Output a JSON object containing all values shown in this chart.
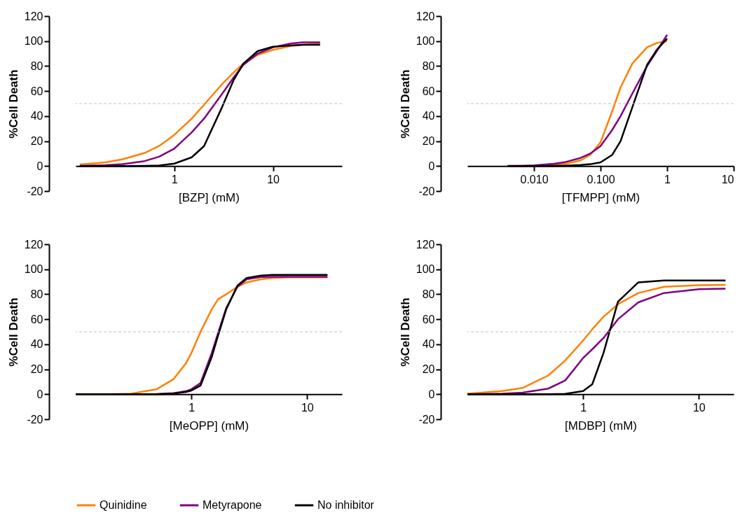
{
  "chart_data": [
    {
      "type": "line",
      "xlabel": "[BZP] (mM)",
      "ylabel": "%Cell Death",
      "log": "x",
      "xlim": [
        0.1,
        50
      ],
      "xticks": [
        1,
        10
      ],
      "ylim": [
        -20,
        120
      ],
      "yticks": [
        -20,
        0,
        20,
        40,
        60,
        80,
        100,
        120
      ],
      "grid": false,
      "legend": "bottom",
      "marker": "none",
      "line_style": "solid",
      "ref_lines": [
        {
          "axis": "y",
          "value": 50,
          "color": "#c0c0c0",
          "line_style": "dashed"
        }
      ],
      "x": [
        0.11,
        0.2,
        0.3,
        0.5,
        0.7,
        1,
        1.5,
        2,
        3,
        4,
        5,
        7,
        10,
        15,
        20,
        30
      ],
      "series": [
        {
          "name": "Quinidine",
          "color": "#ff8000",
          "values": [
            1.3,
            3,
            5.5,
            10.5,
            16,
            25,
            38,
            49,
            65,
            75,
            82,
            89,
            93,
            96,
            97,
            98
          ]
        },
        {
          "name": "Metyrapone",
          "color": "#800080",
          "values": [
            0.2,
            0.7,
            1.5,
            4,
            7.5,
            14,
            27,
            38,
            57,
            71,
            81,
            90,
            95,
            98,
            99,
            99
          ]
        },
        {
          "name": "No inhibitor",
          "color": "#000000",
          "values": [
            0,
            0,
            0,
            0.2,
            0.5,
            2,
            7,
            16,
            46,
            69,
            82,
            92,
            95.5,
            96.5,
            97,
            97
          ]
        }
      ]
    },
    {
      "type": "line",
      "xlabel": "[TFMPP] (mM)",
      "ylabel": "%Cell Death",
      "log": "x",
      "xlim": [
        0.001,
        10
      ],
      "xticks": [
        {
          "value": 0.01,
          "label": "0.010"
        },
        {
          "value": 0.1,
          "label": "0.100"
        },
        1,
        10
      ],
      "ylim": [
        -20,
        120
      ],
      "yticks": [
        -20,
        0,
        20,
        40,
        60,
        80,
        100,
        120
      ],
      "grid": false,
      "legend": "bottom",
      "marker": "none",
      "line_style": "solid",
      "ref_lines": [
        {
          "axis": "y",
          "value": 50,
          "color": "#c0c0c0",
          "line_style": "dashed"
        }
      ],
      "x": [
        0.004,
        0.007,
        0.01,
        0.02,
        0.03,
        0.05,
        0.07,
        0.1,
        0.15,
        0.2,
        0.3,
        0.5,
        0.7,
        1
      ],
      "series": [
        {
          "name": "Quinidine",
          "color": "#ff8000",
          "values": [
            null,
            null,
            0.2,
            0.8,
            1.8,
            4.5,
            9,
            19,
            44,
            63,
            82,
            95,
            98.5,
            100
          ]
        },
        {
          "name": "Metyrapone",
          "color": "#800080",
          "values": [
            0.1,
            0.3,
            0.6,
            1.8,
            3.3,
            6.5,
            10,
            16,
            29,
            40,
            58,
            80,
            92,
            105
          ]
        },
        {
          "name": "No inhibitor",
          "color": "#000000",
          "values": [
            0,
            0,
            0,
            0.1,
            0.3,
            0.8,
            1.5,
            3,
            9,
            20,
            47,
            81,
            93,
            102
          ]
        }
      ]
    },
    {
      "type": "line",
      "xlabel": "[MeOPP] (mM)",
      "ylabel": "%Cell Death",
      "log": "x",
      "xlim": [
        0.1,
        20
      ],
      "xticks": [
        1,
        10
      ],
      "ylim": [
        -20,
        120
      ],
      "yticks": [
        -20,
        0,
        20,
        40,
        60,
        80,
        100,
        120
      ],
      "grid": false,
      "legend": "bottom",
      "marker": "none",
      "line_style": "solid",
      "ref_lines": [
        {
          "axis": "y",
          "value": 50,
          "color": "#c0c0c0",
          "line_style": "dashed"
        }
      ],
      "x": [
        0.1,
        0.2,
        0.3,
        0.5,
        0.7,
        0.9,
        1,
        1.2,
        1.5,
        1.7,
        2,
        2.5,
        3,
        4,
        5,
        7,
        10,
        15
      ],
      "series": [
        {
          "name": "Quinidine",
          "color": "#ff8000",
          "values": [
            0,
            0,
            0.5,
            4,
            12,
            25,
            33,
            50,
            68,
            76,
            80,
            86,
            89.5,
            92,
            93,
            93.5,
            93.5,
            93.5
          ]
        },
        {
          "name": "Metyrapone",
          "color": "#800080",
          "values": [
            null,
            null,
            0,
            0.2,
            0.8,
            2.5,
            4,
            9,
            33,
            49,
            69,
            86,
            92,
            93.8,
            94,
            94,
            94,
            94
          ]
        },
        {
          "name": "No inhibitor",
          "color": "#000000",
          "values": [
            0,
            0,
            0,
            0,
            0.5,
            1.8,
            3,
            7,
            30,
            47,
            68,
            87,
            93,
            95,
            95.5,
            95.5,
            95.5,
            95.5
          ]
        }
      ]
    },
    {
      "type": "line",
      "xlabel": "[MDBP] (mM)",
      "ylabel": "%Cell Death",
      "log": "x",
      "xlim": [
        0.1,
        20
      ],
      "xticks": [
        1,
        10
      ],
      "ylim": [
        -20,
        120
      ],
      "yticks": [
        -20,
        0,
        20,
        40,
        60,
        80,
        100,
        120
      ],
      "grid": false,
      "legend": "bottom",
      "marker": "none",
      "line_style": "solid",
      "ref_lines": [
        {
          "axis": "y",
          "value": 50,
          "color": "#c0c0c0",
          "line_style": "dashed"
        }
      ],
      "x": [
        0.1,
        0.2,
        0.3,
        0.5,
        0.7,
        1,
        1.2,
        1.5,
        2,
        3,
        5,
        10,
        17
      ],
      "series": [
        {
          "name": "Quinidine",
          "color": "#ff8000",
          "values": [
            0.5,
            2.5,
            5,
            15,
            27,
            43,
            52,
            62,
            72,
            81,
            86,
            87.3,
            87.5
          ]
        },
        {
          "name": "Metyrapone",
          "color": "#800080",
          "values": [
            0,
            0.5,
            1.3,
            4.5,
            11,
            29,
            36,
            45,
            60,
            73.5,
            81,
            84,
            84.5
          ]
        },
        {
          "name": "No inhibitor",
          "color": "#000000",
          "values": [
            0,
            0,
            0,
            0,
            0.3,
            2.5,
            8,
            33,
            74,
            89.5,
            91,
            91,
            91
          ]
        }
      ]
    }
  ]
}
